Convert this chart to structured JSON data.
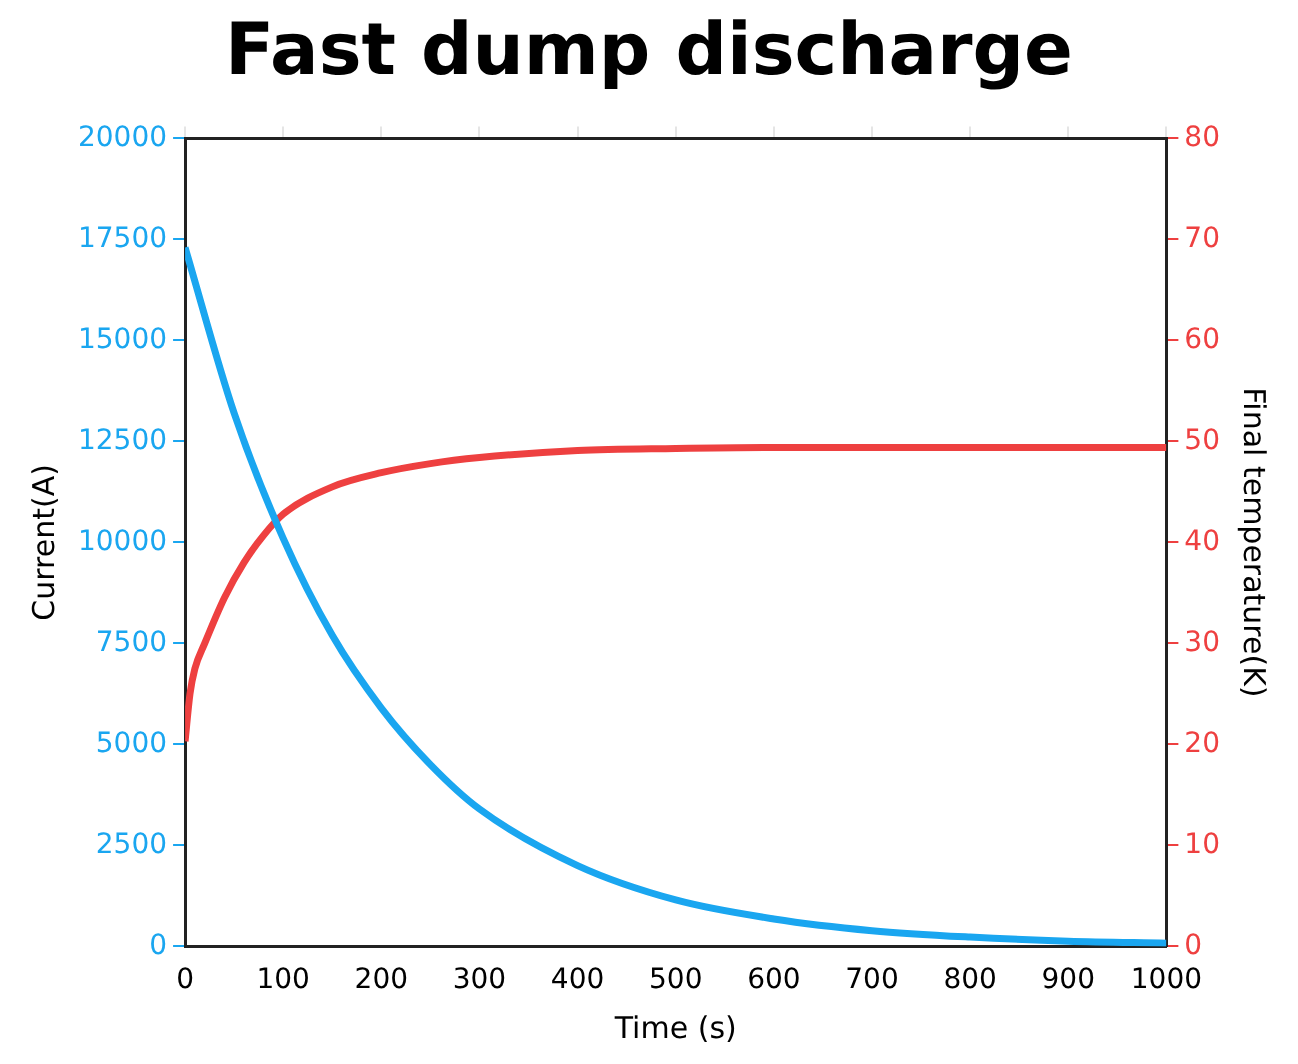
{
  "chart_data": {
    "type": "line",
    "title": "Fast dump discharge",
    "xlabel": "Time (s)",
    "ylabel": "Current(A)",
    "y2label": "Final temperature(K)",
    "xlim": [
      0,
      1000
    ],
    "xticks": [
      0,
      100,
      200,
      300,
      400,
      500,
      600,
      700,
      800,
      900,
      1000
    ],
    "ylim": [
      0,
      20000
    ],
    "yticks": [
      0,
      2500,
      5000,
      7500,
      10000,
      12500,
      15000,
      17500,
      20000
    ],
    "y2lim": [
      0,
      80
    ],
    "y2ticks": [
      0,
      10,
      20,
      30,
      40,
      50,
      60,
      70,
      80
    ],
    "grid": false,
    "legend": false,
    "marker": "none",
    "line_style": "solid",
    "series": [
      {
        "color": "#1aa6f0",
        "x": [
          0,
          50,
          100,
          150,
          200,
          250,
          300,
          400,
          500,
          600,
          700,
          800,
          900,
          1000
        ],
        "values": [
          17300,
          13200,
          10100,
          7700,
          5900,
          4500,
          3400,
          2000,
          1150,
          680,
          390,
          230,
          130,
          80
        ]
      },
      {
        "color": "#ee4040",
        "axis": "y2",
        "x": [
          0,
          5,
          10,
          20,
          40,
          60,
          80,
          100,
          150,
          200,
          250,
          300,
          400,
          500,
          600,
          1000
        ],
        "values": [
          20.3,
          25,
          27.5,
          30,
          34.5,
          38,
          40.7,
          42.8,
          45.5,
          46.9,
          47.8,
          48.4,
          49.1,
          49.3,
          49.4,
          49.4
        ]
      }
    ]
  }
}
